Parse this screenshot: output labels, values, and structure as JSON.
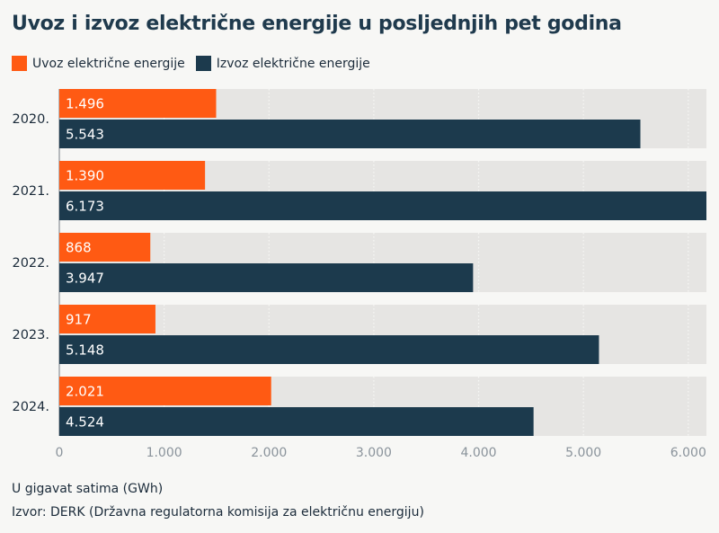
{
  "title": "Uvoz i izvoz električne energije u posljednjih pet godina",
  "legend": [
    {
      "label": "Uvoz električne energije",
      "color": "#ff5a13"
    },
    {
      "label": "Izvoz električne energije",
      "color": "#1c3a4d"
    }
  ],
  "chart_data": {
    "type": "bar",
    "orientation": "horizontal",
    "categories": [
      "2020.",
      "2021.",
      "2022.",
      "2023.",
      "2024."
    ],
    "series": [
      {
        "name": "Uvoz električne energije",
        "color": "#ff5a13",
        "values": [
          1496,
          1390,
          868,
          917,
          2021
        ],
        "labels": [
          "1.496",
          "1.390",
          "868",
          "917",
          "2.021"
        ]
      },
      {
        "name": "Izvoz električne energije",
        "color": "#1c3a4d",
        "values": [
          5543,
          6173,
          3947,
          5148,
          4524
        ],
        "labels": [
          "5.543",
          "6.173",
          "3.947",
          "5.148",
          "4.524"
        ]
      }
    ],
    "xlim": [
      0,
      6173
    ],
    "xticks": [
      0,
      1000,
      2000,
      3000,
      4000,
      5000,
      6000
    ],
    "xtick_labels": [
      "0",
      "1.000",
      "2.000",
      "3.000",
      "4.000",
      "5.000",
      "6.000"
    ],
    "grid": true
  },
  "footer": {
    "unit": "U gigavat satima (GWh)",
    "source": "Izvor: DERK (Državna regulatorna komisija za električnu energiju)"
  }
}
